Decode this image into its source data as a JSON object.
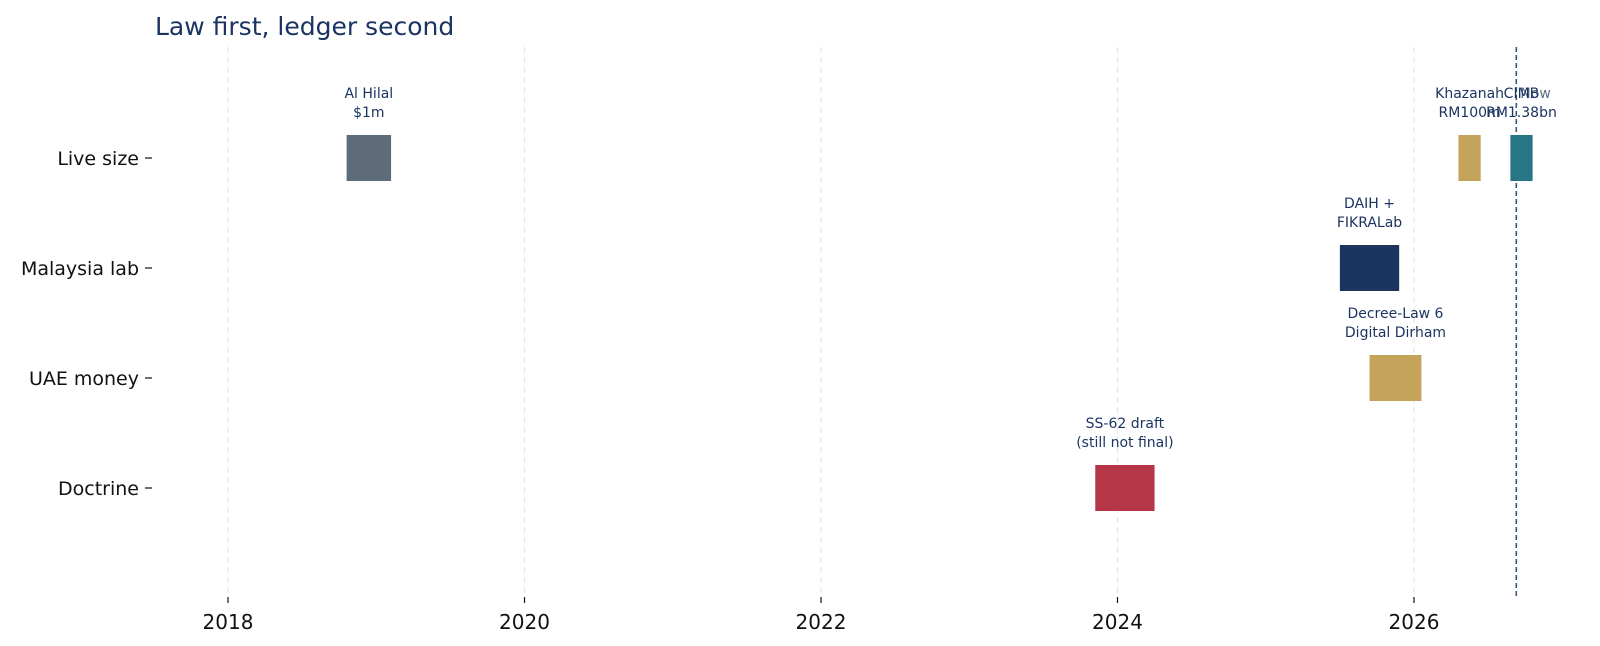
{
  "chart_data": {
    "type": "timeline",
    "title": "Law first, ledger second",
    "xlabel": "",
    "ylabel": "",
    "x_ticks": [
      "2018",
      "2020",
      "2022",
      "2024",
      "2026"
    ],
    "xlim": [
      2017.5,
      2027.0
    ],
    "grid": "vertical dashed",
    "rows": [
      "Live size",
      "Malaysia lab",
      "UAE money",
      "Doctrine"
    ],
    "events": [
      {
        "row": "Live size",
        "label_lines": [
          "Al Hilal",
          "$1m"
        ],
        "start": 2018.8,
        "end": 2019.1,
        "color": "#5d6b7a"
      },
      {
        "row": "Live size",
        "label_lines": [
          "Khazanah",
          "RM100m"
        ],
        "start": 2026.3,
        "end": 2026.45,
        "color": "#c4a35a"
      },
      {
        "row": "Live size",
        "label_lines": [
          "CIMB",
          "RM1.38bn"
        ],
        "start": 2026.65,
        "end": 2026.8,
        "color": "#277585"
      },
      {
        "row": "Malaysia lab",
        "label_lines": [
          "DAIH +",
          "FIKRALab"
        ],
        "start": 2025.5,
        "end": 2025.9,
        "color": "#1c3560"
      },
      {
        "row": "UAE money",
        "label_lines": [
          "Decree-Law 6",
          "Digital Dirham"
        ],
        "start": 2025.7,
        "end": 2026.05,
        "color": "#c4a35a"
      },
      {
        "row": "Doctrine",
        "label_lines": [
          "SS-62 draft",
          "(still not final)"
        ],
        "start": 2023.85,
        "end": 2024.25,
        "color": "#b53747"
      }
    ],
    "now": {
      "label": "Now",
      "x": 2026.69
    }
  }
}
